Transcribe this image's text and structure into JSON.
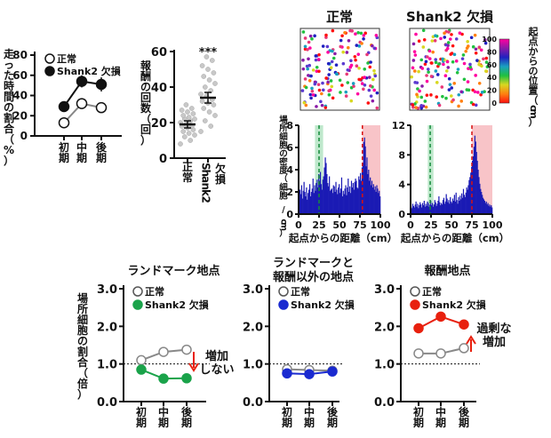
{
  "colors": {
    "normal_line": "#888888",
    "shank2_black": "#111111",
    "landmark_green": "#1aa34a",
    "other_blue": "#1a2ad0",
    "reward_red": "#e8200e",
    "hist_bar": "#1a1ab4",
    "landmark_zone": "#bfe8cc",
    "reward_zone": "#f8c4c8",
    "annot_red": "#e8200e"
  },
  "colorbar": {
    "title": "起点からの位置（cm）",
    "ticks": [
      "100",
      "80",
      "60",
      "40",
      "20",
      "0"
    ],
    "stops": [
      "#ff00a0",
      "#8a1aa8",
      "#2020c0",
      "#1aa0c0",
      "#20c040",
      "#d8d820",
      "#ff8010",
      "#ff1010"
    ]
  },
  "chart_data": [
    {
      "id": "time_ratio",
      "type": "line",
      "ylabel": "走った時間の割合（%）",
      "categories": [
        "初期",
        "中期",
        "後期"
      ],
      "ylim": [
        0,
        80
      ],
      "yticks": [
        "0",
        "20",
        "40",
        "60",
        "80"
      ],
      "legend": [
        "正常",
        "Shank2 欠損"
      ],
      "series": [
        {
          "name": "正常",
          "values": [
            13,
            32,
            28
          ],
          "err": [
            2,
            5,
            4
          ],
          "style": "open"
        },
        {
          "name": "Shank2 欠損",
          "values": [
            29,
            54,
            51
          ],
          "err": [
            3,
            6,
            7
          ],
          "style": "filled"
        }
      ]
    },
    {
      "id": "reward_count",
      "type": "scatter",
      "ylabel": "報酬の回数（回）",
      "categories": [
        "正常",
        "Shank2 欠損"
      ],
      "ylim": [
        0,
        60
      ],
      "yticks": [
        "0",
        "20",
        "40",
        "60"
      ],
      "significance": "***",
      "means": [
        19,
        34
      ],
      "sem": [
        2,
        3
      ],
      "points": [
        [
          8,
          10,
          12,
          13,
          14,
          15,
          16,
          17,
          18,
          18,
          19,
          20,
          21,
          22,
          22,
          23,
          24,
          25,
          26,
          27,
          28,
          30
        ],
        [
          15,
          18,
          21,
          24,
          26,
          28,
          30,
          31,
          32,
          33,
          35,
          36,
          38,
          40,
          42,
          44,
          46,
          48,
          50,
          52,
          55,
          57
        ]
      ]
    },
    {
      "id": "hist_normal",
      "type": "bar",
      "title": "正常",
      "ylabel": "場所細胞の密度（細胞 / cm）",
      "xlabel": "起点からの距離（cm）",
      "ylim": [
        0,
        8
      ],
      "yticks": [
        "0",
        "2",
        "4",
        "6",
        "8"
      ],
      "xlim": [
        0,
        100
      ],
      "xticks": [
        "0",
        "25",
        "50",
        "75",
        "100"
      ],
      "landmark_zone": [
        20,
        30
      ],
      "landmark_line": 25,
      "reward_zone": [
        78,
        100
      ],
      "reward_line": 78,
      "values": [
        1.5,
        2.2,
        1.8,
        2.6,
        1.4,
        2.1,
        2.9,
        2.0,
        1.6,
        2.4,
        1.3,
        1.9,
        2.2,
        2.7,
        1.6,
        2.0,
        2.3,
        3.2,
        1.9,
        2.6,
        2.1,
        2.8,
        3.1,
        2.4,
        3.6,
        3.0,
        3.8,
        2.7,
        2.2,
        3.1,
        3.4,
        4.2,
        5.1,
        4.6,
        3.6,
        2.8,
        2.5,
        3.4,
        2.1,
        2.2,
        2.3,
        1.9,
        2.6,
        2.5,
        2.0,
        2.9,
        2.2,
        1.8,
        2.4,
        2.7,
        1.9,
        2.3,
        3.3,
        1.6,
        2.1,
        1.8,
        2.3,
        2.6,
        1.7,
        2.4,
        3.2,
        2.0,
        2.5,
        1.9,
        3.0,
        2.4,
        2.8,
        2.2,
        2.9,
        3.2,
        3.0,
        2.4,
        2.3,
        3.4,
        3.1,
        3.7,
        3.0,
        4.2,
        4.6,
        6.5,
        6.9,
        6.1,
        4.3,
        5.1,
        3.6,
        4.0,
        3.0,
        3.3,
        2.6,
        3.0,
        2.4,
        2.7,
        2.2,
        2.5,
        2.0,
        2.6,
        2.3,
        1.9,
        2.1,
        1.6
      ]
    },
    {
      "id": "hist_shank2",
      "type": "bar",
      "title": "Shank2 欠損",
      "xlabel": "起点からの距離（cm）",
      "ylim": [
        0,
        12
      ],
      "yticks": [
        "0",
        "4",
        "8",
        "12"
      ],
      "xlim": [
        0,
        100
      ],
      "xticks": [
        "0",
        "25",
        "50",
        "75",
        "100"
      ],
      "landmark_zone": [
        21,
        28
      ],
      "landmark_line": 24,
      "reward_zone": [
        75,
        100
      ],
      "reward_line": 75,
      "values": [
        1.0,
        0.8,
        1.4,
        1.1,
        0.9,
        1.3,
        1.7,
        1.0,
        1.4,
        0.8,
        1.2,
        1.6,
        1.3,
        0.9,
        1.5,
        1.2,
        1.8,
        1.0,
        1.4,
        1.1,
        1.7,
        1.5,
        1.0,
        1.3,
        1.8,
        1.2,
        1.5,
        1.0,
        1.3,
        1.9,
        1.6,
        1.1,
        1.4,
        1.8,
        2.4,
        1.6,
        1.2,
        1.5,
        1.3,
        1.9,
        2.2,
        1.4,
        1.7,
        2.7,
        2.1,
        1.6,
        1.9,
        1.4,
        2.3,
        1.7,
        1.5,
        2.1,
        1.8,
        2.6,
        1.7,
        2.9,
        1.9,
        1.4,
        2.3,
        1.8,
        2.5,
        2.0,
        2.8,
        2.2,
        3.4,
        2.6,
        2.3,
        2.9,
        3.6,
        3.3,
        3.9,
        4.6,
        5.0,
        5.6,
        6.4,
        7.2,
        7.8,
        9.1,
        10.6,
        9.8,
        8.4,
        7.2,
        6.0,
        5.0,
        4.1,
        3.4,
        3.0,
        2.6,
        2.2,
        2.0,
        1.8,
        1.5,
        1.7,
        1.3,
        1.5,
        1.1,
        1.3,
        1.0,
        1.2,
        0.9
      ]
    },
    {
      "id": "ratio_landmark",
      "type": "line",
      "title": "ランドマーク地点",
      "ylabel": "場所細胞の割合（倍）",
      "categories": [
        "初期",
        "中期",
        "後期"
      ],
      "ylim": [
        0,
        3
      ],
      "yticks": [
        "0.0",
        "1.0",
        "2.0",
        "3.0"
      ],
      "reference": 1.0,
      "legend": [
        "正常",
        "Shank2 欠損"
      ],
      "series": [
        {
          "name": "正常",
          "values": [
            1.1,
            1.32,
            1.38
          ],
          "err": [
            0.05,
            0.1,
            0.06
          ],
          "style": "open"
        },
        {
          "name": "Shank2 欠損",
          "values": [
            0.85,
            0.61,
            0.62
          ],
          "err": [
            0.04,
            0.05,
            0.04
          ],
          "style": "filled"
        }
      ],
      "annotation": "増加しない",
      "annotation_lines": [
        "増加",
        "しない"
      ]
    },
    {
      "id": "ratio_other",
      "type": "line",
      "title": "ランドマークと報酬以外の地点",
      "title_lines": [
        "ランドマークと",
        "報酬以外の地点"
      ],
      "categories": [
        "初期",
        "中期",
        "後期"
      ],
      "ylim": [
        0,
        3
      ],
      "yticks": [
        "0.0",
        "1.0",
        "2.0",
        "3.0"
      ],
      "reference": 1.0,
      "legend": [
        "正常",
        "Shank2 欠損"
      ],
      "series": [
        {
          "name": "正常",
          "values": [
            0.86,
            0.84,
            0.82
          ],
          "err": [
            0.03,
            0.03,
            0.03
          ],
          "style": "open"
        },
        {
          "name": "Shank2 欠損",
          "values": [
            0.75,
            0.73,
            0.8
          ],
          "err": [
            0.03,
            0.03,
            0.03
          ],
          "style": "filled"
        }
      ]
    },
    {
      "id": "ratio_reward",
      "type": "line",
      "title": "報酬地点",
      "categories": [
        "初期",
        "中期",
        "後期"
      ],
      "ylim": [
        0,
        3
      ],
      "yticks": [
        "0.0",
        "1.0",
        "2.0",
        "3.0"
      ],
      "reference": 1.0,
      "legend": [
        "正常",
        "Shank2 欠損"
      ],
      "series": [
        {
          "name": "正常",
          "values": [
            1.28,
            1.28,
            1.42
          ],
          "err": [
            0.05,
            0.05,
            0.05
          ],
          "style": "open"
        },
        {
          "name": "Shank2 欠損",
          "values": [
            1.95,
            2.26,
            2.05
          ],
          "err": [
            0.1,
            0.12,
            0.1
          ],
          "style": "filled"
        }
      ],
      "annotation": "過剰な増加",
      "annotation_lines": [
        "過剰な",
        "増加"
      ]
    }
  ]
}
